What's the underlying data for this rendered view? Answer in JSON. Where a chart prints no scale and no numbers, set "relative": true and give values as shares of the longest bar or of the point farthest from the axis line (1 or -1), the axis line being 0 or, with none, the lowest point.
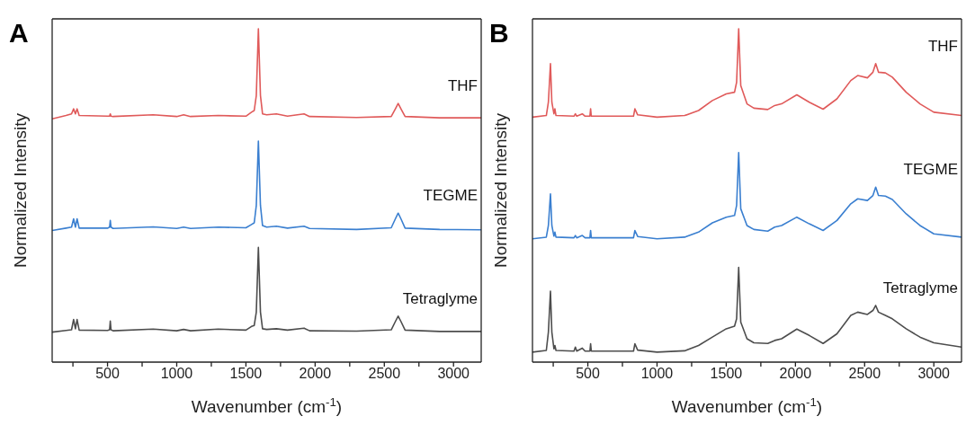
{
  "chart_data": [
    {
      "type": "line",
      "title": "A",
      "xlabel": "Wavenumber (cm$^{-1}$)",
      "ylabel": "Normalized Intensity",
      "relative": true,
      "tick_labels": "x",
      "grid": false,
      "legend": false,
      "marker": "none",
      "line_style": "solid",
      "xlim": [
        100,
        3200
      ],
      "xticks": [
        {
          "value": 250,
          "label": null
        },
        500,
        {
          "value": 750,
          "label": null
        },
        1000,
        {
          "value": 1250,
          "label": null
        },
        1500,
        {
          "value": 1750,
          "label": null
        },
        2000,
        {
          "value": 2250,
          "label": null
        },
        2500,
        {
          "value": 2750,
          "label": null
        },
        3000
      ],
      "x": [
        100,
        200,
        240,
        255,
        268,
        280,
        295,
        500,
        515,
        520,
        525,
        540,
        830,
        1000,
        1050,
        1100,
        1300,
        1500,
        1540,
        1560,
        1575,
        1590,
        1605,
        1620,
        1650,
        1720,
        1800,
        1920,
        1960,
        2300,
        2550,
        2580,
        2600,
        2620,
        2650,
        2900,
        3200
      ],
      "series": [
        {
          "name": "THF",
          "color": "#e05a5a",
          "values": [
            0.73,
            0.74,
            0.745,
            0.76,
            0.745,
            0.76,
            0.74,
            0.738,
            0.738,
            0.745,
            0.738,
            0.737,
            0.742,
            0.737,
            0.742,
            0.737,
            0.74,
            0.738,
            0.75,
            0.755,
            0.8,
            1,
            0.8,
            0.745,
            0.742,
            0.745,
            0.738,
            0.745,
            0.737,
            0.734,
            0.737,
            0.76,
            0.776,
            0.76,
            0.737,
            0.733,
            0.733
          ]
        },
        {
          "name": "TEGME",
          "color": "#3a7fd0",
          "values": [
            0.395,
            0.402,
            0.405,
            0.43,
            0.405,
            0.43,
            0.402,
            0.402,
            0.405,
            0.425,
            0.405,
            0.401,
            0.406,
            0.401,
            0.405,
            0.401,
            0.405,
            0.403,
            0.413,
            0.418,
            0.47,
            0.663,
            0.47,
            0.41,
            0.405,
            0.408,
            0.402,
            0.408,
            0.401,
            0.398,
            0.403,
            0.43,
            0.447,
            0.43,
            0.402,
            0.398,
            0.397
          ]
        },
        {
          "name": "Tetraglyme",
          "color": "#4d4d4d",
          "values": [
            0.09,
            0.095,
            0.097,
            0.128,
            0.1,
            0.128,
            0.096,
            0.095,
            0.097,
            0.123,
            0.097,
            0.094,
            0.099,
            0.094,
            0.098,
            0.094,
            0.099,
            0.096,
            0.107,
            0.11,
            0.15,
            0.344,
            0.15,
            0.1,
            0.098,
            0.1,
            0.096,
            0.102,
            0.094,
            0.093,
            0.097,
            0.122,
            0.138,
            0.122,
            0.096,
            0.092,
            0.092
          ]
        }
      ]
    },
    {
      "type": "line",
      "title": "B",
      "xlabel": "Wavenumber (cm$^{-1}$)",
      "ylabel": "Normalized Intensity",
      "relative": true,
      "tick_labels": "x",
      "grid": false,
      "legend": false,
      "marker": "none",
      "line_style": "solid",
      "xlim": [
        100,
        3200
      ],
      "xticks": [
        {
          "value": 250,
          "label": null
        },
        500,
        {
          "value": 750,
          "label": null
        },
        1000,
        {
          "value": 1250,
          "label": null
        },
        1500,
        {
          "value": 1750,
          "label": null
        },
        2000,
        {
          "value": 2250,
          "label": null
        },
        2500,
        {
          "value": 2750,
          "label": null
        },
        3000
      ],
      "x": [
        100,
        200,
        215,
        230,
        240,
        255,
        262,
        270,
        400,
        410,
        420,
        460,
        480,
        515,
        520,
        525,
        830,
        840,
        860,
        1000,
        1200,
        1300,
        1400,
        1500,
        1560,
        1575,
        1590,
        1605,
        1650,
        1700,
        1800,
        1850,
        1900,
        2010,
        2100,
        2200,
        2300,
        2400,
        2450,
        2520,
        2560,
        2580,
        2600,
        2650,
        2700,
        2800,
        2900,
        3000,
        3200
      ],
      "series": [
        {
          "name": "THF",
          "color": "#e05a5a",
          "values": [
            0.735,
            0.74,
            0.78,
            0.896,
            0.78,
            0.745,
            0.76,
            0.74,
            0.738,
            0.745,
            0.738,
            0.745,
            0.738,
            0.738,
            0.76,
            0.738,
            0.738,
            0.76,
            0.742,
            0.735,
            0.74,
            0.755,
            0.785,
            0.805,
            0.81,
            0.84,
            1,
            0.83,
            0.775,
            0.762,
            0.758,
            0.77,
            0.775,
            0.802,
            0.78,
            0.759,
            0.79,
            0.845,
            0.86,
            0.853,
            0.87,
            0.896,
            0.87,
            0.868,
            0.855,
            0.81,
            0.775,
            0.75,
            0.74
          ]
        },
        {
          "name": "TEGME",
          "color": "#3a7fd0",
          "values": [
            0.37,
            0.375,
            0.41,
            0.505,
            0.41,
            0.378,
            0.39,
            0.375,
            0.373,
            0.38,
            0.373,
            0.38,
            0.373,
            0.373,
            0.395,
            0.373,
            0.373,
            0.395,
            0.377,
            0.37,
            0.375,
            0.39,
            0.418,
            0.435,
            0.44,
            0.47,
            0.629,
            0.46,
            0.41,
            0.398,
            0.393,
            0.405,
            0.41,
            0.435,
            0.415,
            0.395,
            0.425,
            0.475,
            0.49,
            0.485,
            0.5,
            0.525,
            0.5,
            0.498,
            0.488,
            0.445,
            0.41,
            0.385,
            0.375
          ]
        },
        {
          "name": "Tetraglyme",
          "color": "#4d4d4d",
          "values": [
            0.03,
            0.035,
            0.09,
            0.213,
            0.09,
            0.04,
            0.05,
            0.035,
            0.033,
            0.045,
            0.033,
            0.042,
            0.033,
            0.033,
            0.055,
            0.033,
            0.033,
            0.055,
            0.036,
            0.03,
            0.034,
            0.05,
            0.075,
            0.1,
            0.108,
            0.13,
            0.284,
            0.12,
            0.07,
            0.058,
            0.056,
            0.065,
            0.07,
            0.099,
            0.08,
            0.056,
            0.085,
            0.14,
            0.15,
            0.143,
            0.155,
            0.17,
            0.15,
            0.14,
            0.13,
            0.1,
            0.075,
            0.058,
            0.045
          ]
        }
      ]
    }
  ]
}
